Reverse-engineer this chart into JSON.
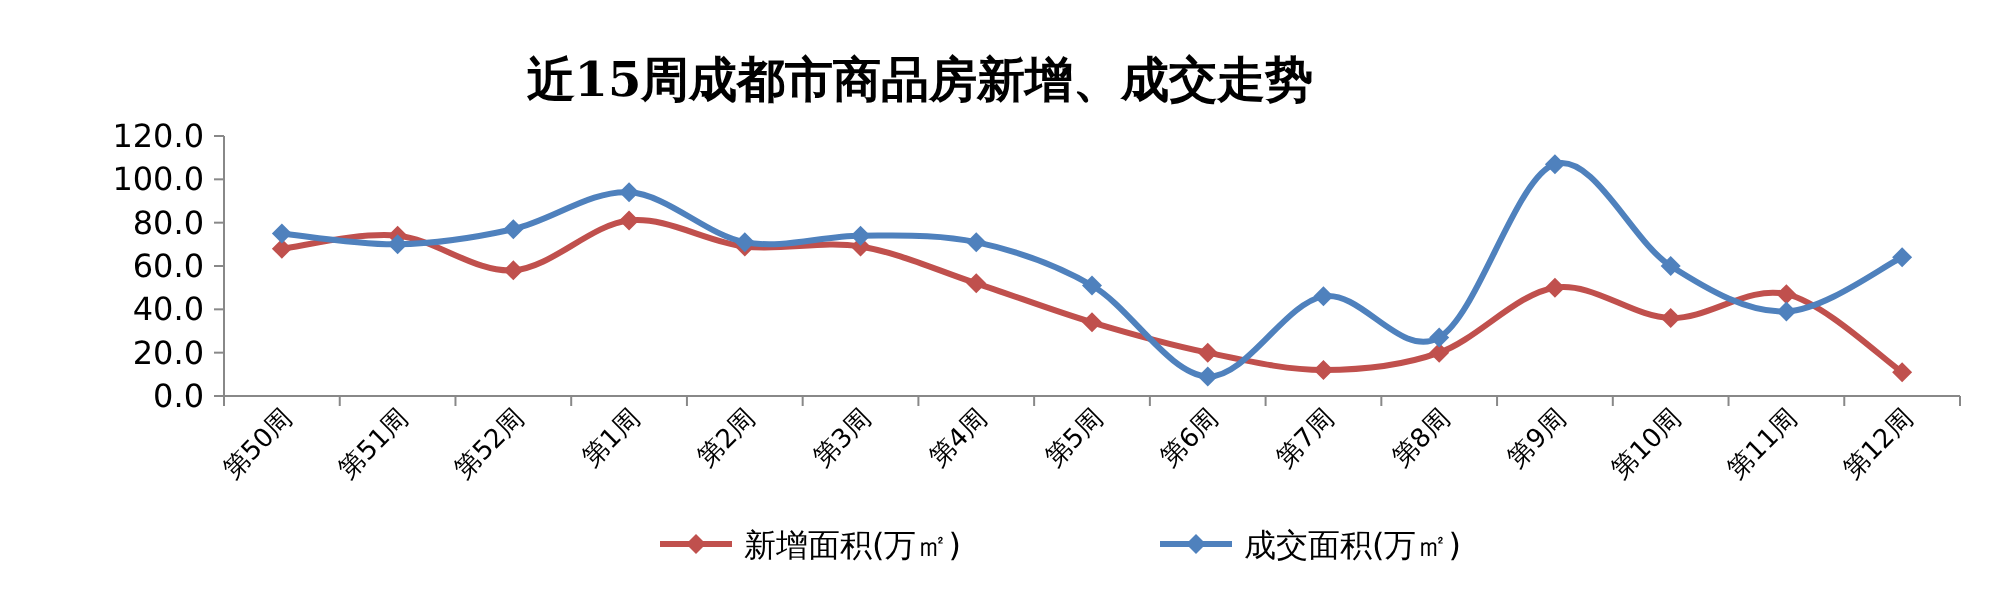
{
  "chart_data": {
    "type": "line",
    "title": "近15周成都市商品房新增、成交走势",
    "categories": [
      "第50周",
      "第51周",
      "第52周",
      "第1周",
      "第2周",
      "第3周",
      "第4周",
      "第5周",
      "第6周",
      "第7周",
      "第8周",
      "第9周",
      "第10周",
      "第11周",
      "第12周"
    ],
    "series": [
      {
        "name": "新增面积(万㎡)",
        "color": "#c0504d",
        "values": [
          68,
          74,
          58,
          81,
          69,
          69,
          52,
          34,
          20,
          12,
          20,
          50,
          36,
          47,
          11
        ]
      },
      {
        "name": "成交面积(万㎡)",
        "color": "#4f81bd",
        "values": [
          75,
          70,
          77,
          94,
          71,
          74,
          71,
          51,
          9,
          46,
          27,
          107,
          60,
          39,
          64
        ]
      }
    ],
    "ylim": [
      0,
      120
    ],
    "yticks": [
      {
        "value": 0,
        "label": "0.0"
      },
      {
        "value": 20,
        "label": "20.0"
      },
      {
        "value": 40,
        "label": "40.0"
      },
      {
        "value": 60,
        "label": "60.0"
      },
      {
        "value": 80,
        "label": "80.0"
      },
      {
        "value": 100,
        "label": "100.0"
      },
      {
        "value": 120,
        "label": "120.0"
      }
    ],
    "marker": "diamond",
    "legend": "bottom",
    "grid": false
  }
}
